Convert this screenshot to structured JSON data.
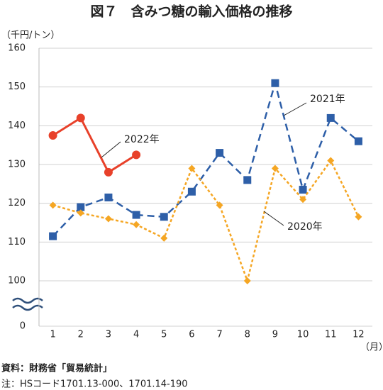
{
  "chart_data": {
    "type": "line",
    "title": "図７　含みつ糖の輸入価格の推移",
    "y_unit": "（千円/トン）",
    "x_unit": "（月）",
    "source": "資料：財務省「貿易統計」",
    "note": "注：HSコード1701.13-000、1701.14-190",
    "categories": [
      "1",
      "2",
      "3",
      "4",
      "5",
      "6",
      "7",
      "8",
      "9",
      "10",
      "11",
      "12"
    ],
    "ylim": [
      0,
      160
    ],
    "yticks": [
      0,
      100,
      110,
      120,
      130,
      140,
      150,
      160
    ],
    "axis_break": [
      0,
      100
    ],
    "grid": true,
    "series": [
      {
        "name": "2022年",
        "color": "#e8412a",
        "marker": "circle",
        "dash": "solid",
        "values": [
          137.5,
          142,
          128,
          132.5,
          null,
          null,
          null,
          null,
          null,
          null,
          null,
          null
        ]
      },
      {
        "name": "2021年",
        "color": "#2e5fa8",
        "marker": "square",
        "dash": "dashed",
        "values": [
          111.5,
          119,
          121.5,
          117,
          116.5,
          123,
          133,
          126,
          151,
          123.5,
          142,
          136
        ]
      },
      {
        "name": "2020年",
        "color": "#f5a623",
        "marker": "diamond",
        "dash": "dotted",
        "values": [
          119.5,
          117.5,
          116,
          114.5,
          111,
          129,
          119.5,
          100,
          129,
          121,
          131,
          116.5
        ]
      }
    ]
  }
}
